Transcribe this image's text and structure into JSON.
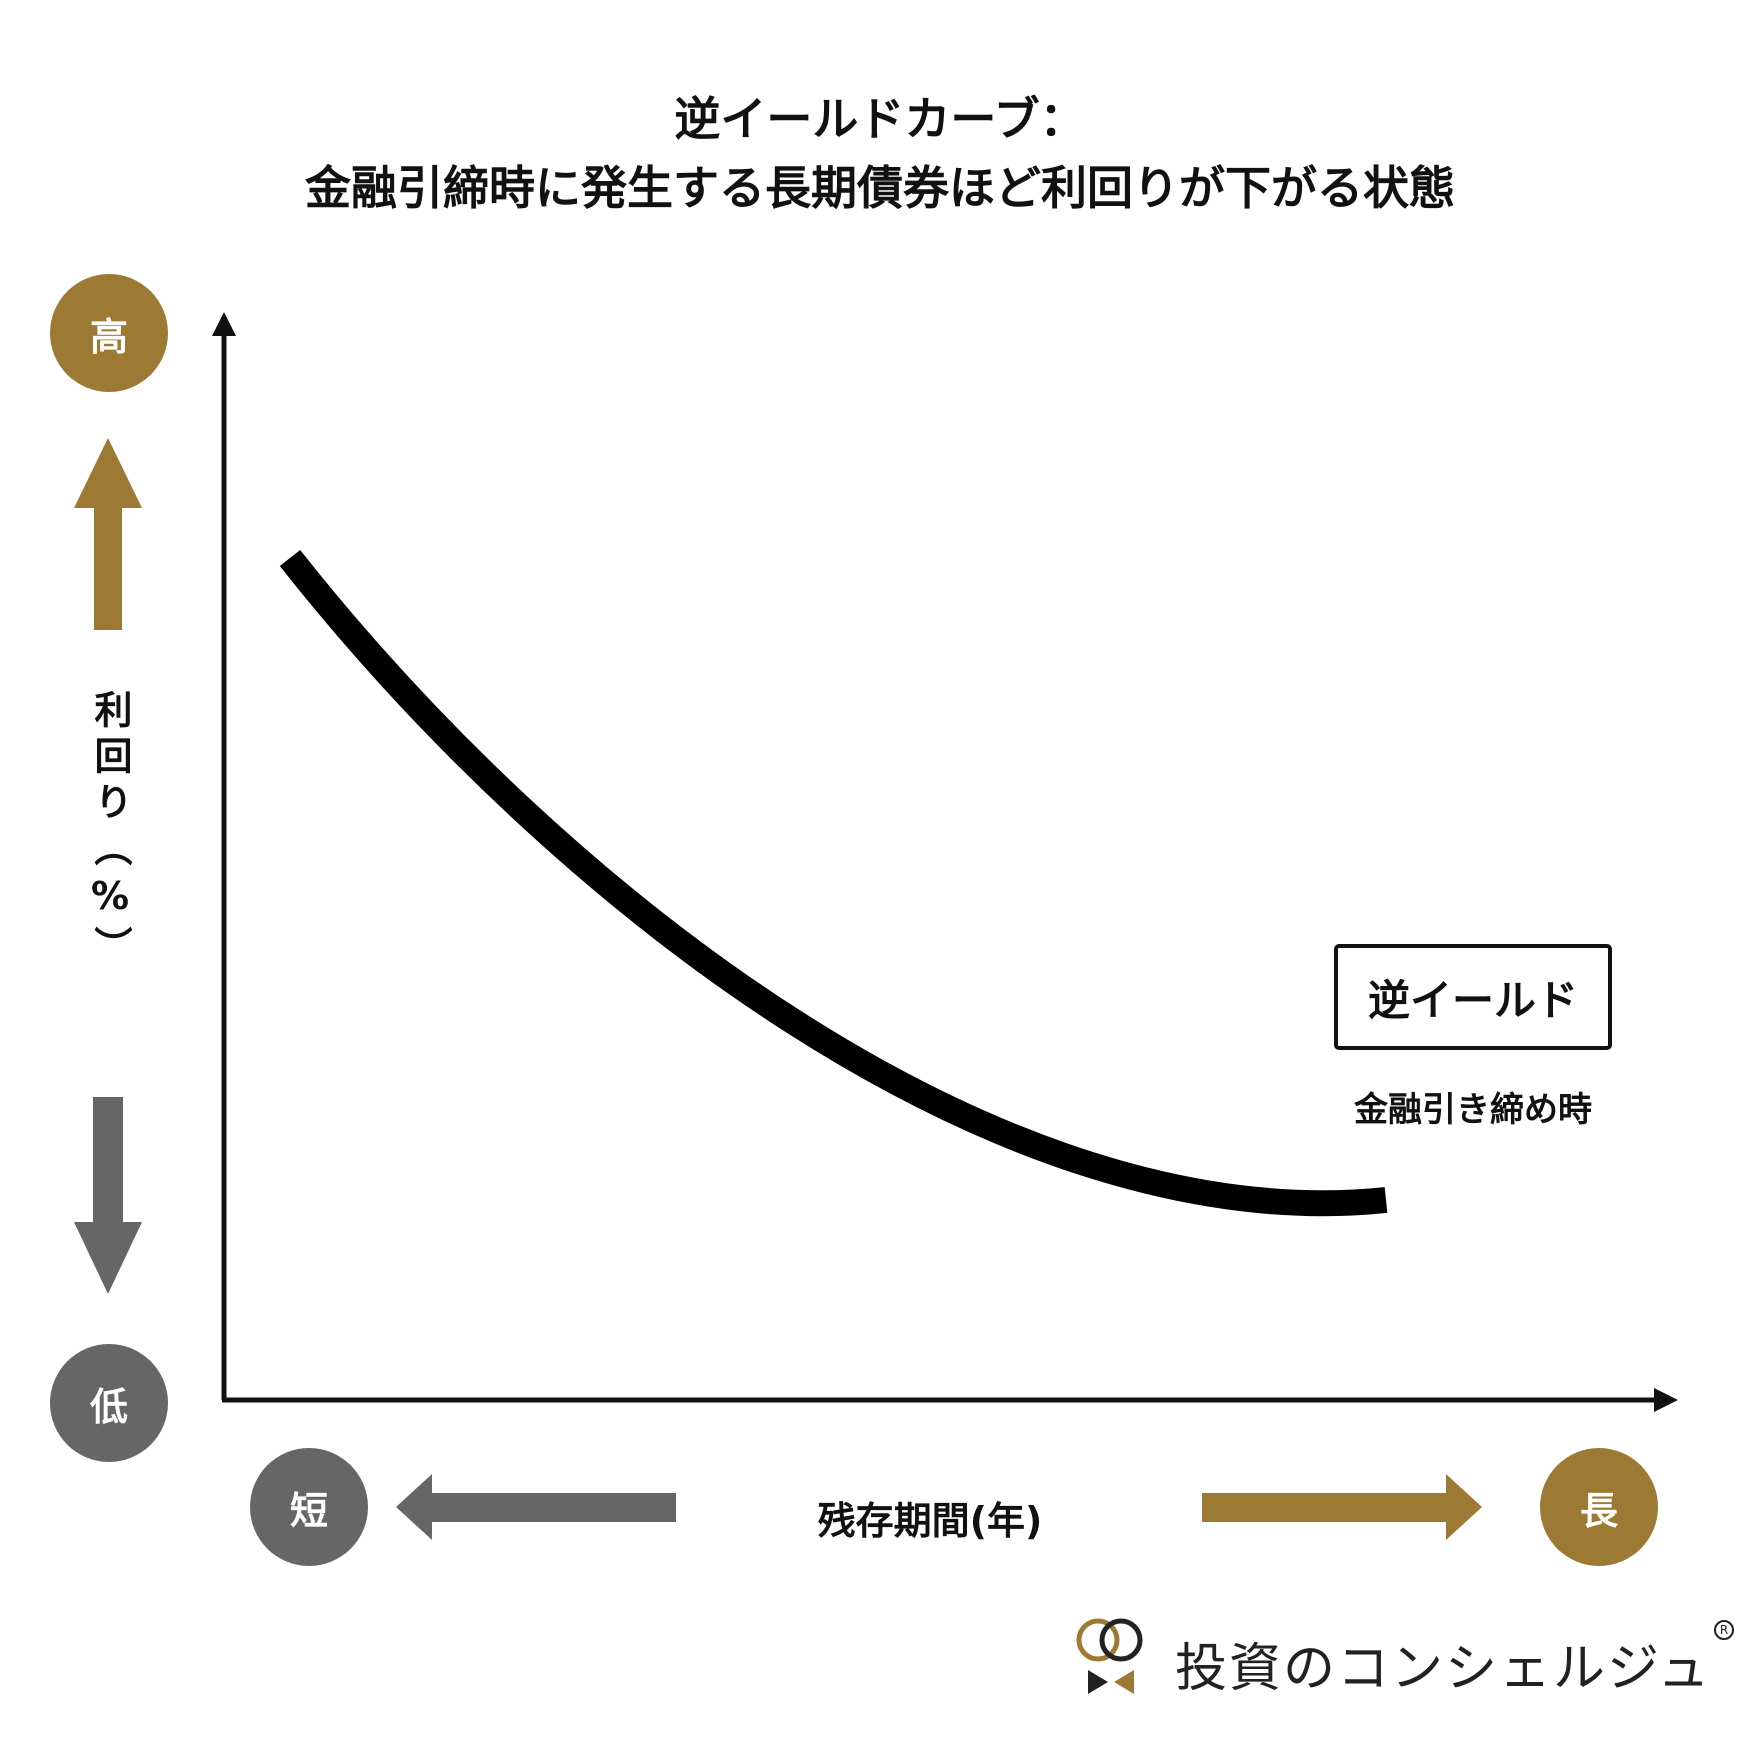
{
  "title": {
    "line1": "逆イールドカーブ：",
    "line2": "金融引締時に発生する長期債券ほど利回りが下がる状態"
  },
  "y_axis": {
    "label": "利回り（%）",
    "high": "高",
    "low": "低"
  },
  "x_axis": {
    "label": "残存期間(年)",
    "short": "短",
    "long": "長"
  },
  "curve": {
    "badge": "逆イールド",
    "caption": "金融引き締め時",
    "shape": "inverted-downward-curve"
  },
  "brand": {
    "name": "投資のコンシェルジュ",
    "registered_mark": "R",
    "logo": "rings-bowtie-logo"
  },
  "colors": {
    "gold": "#9c7a33",
    "gray": "#666666",
    "black": "#111111"
  }
}
